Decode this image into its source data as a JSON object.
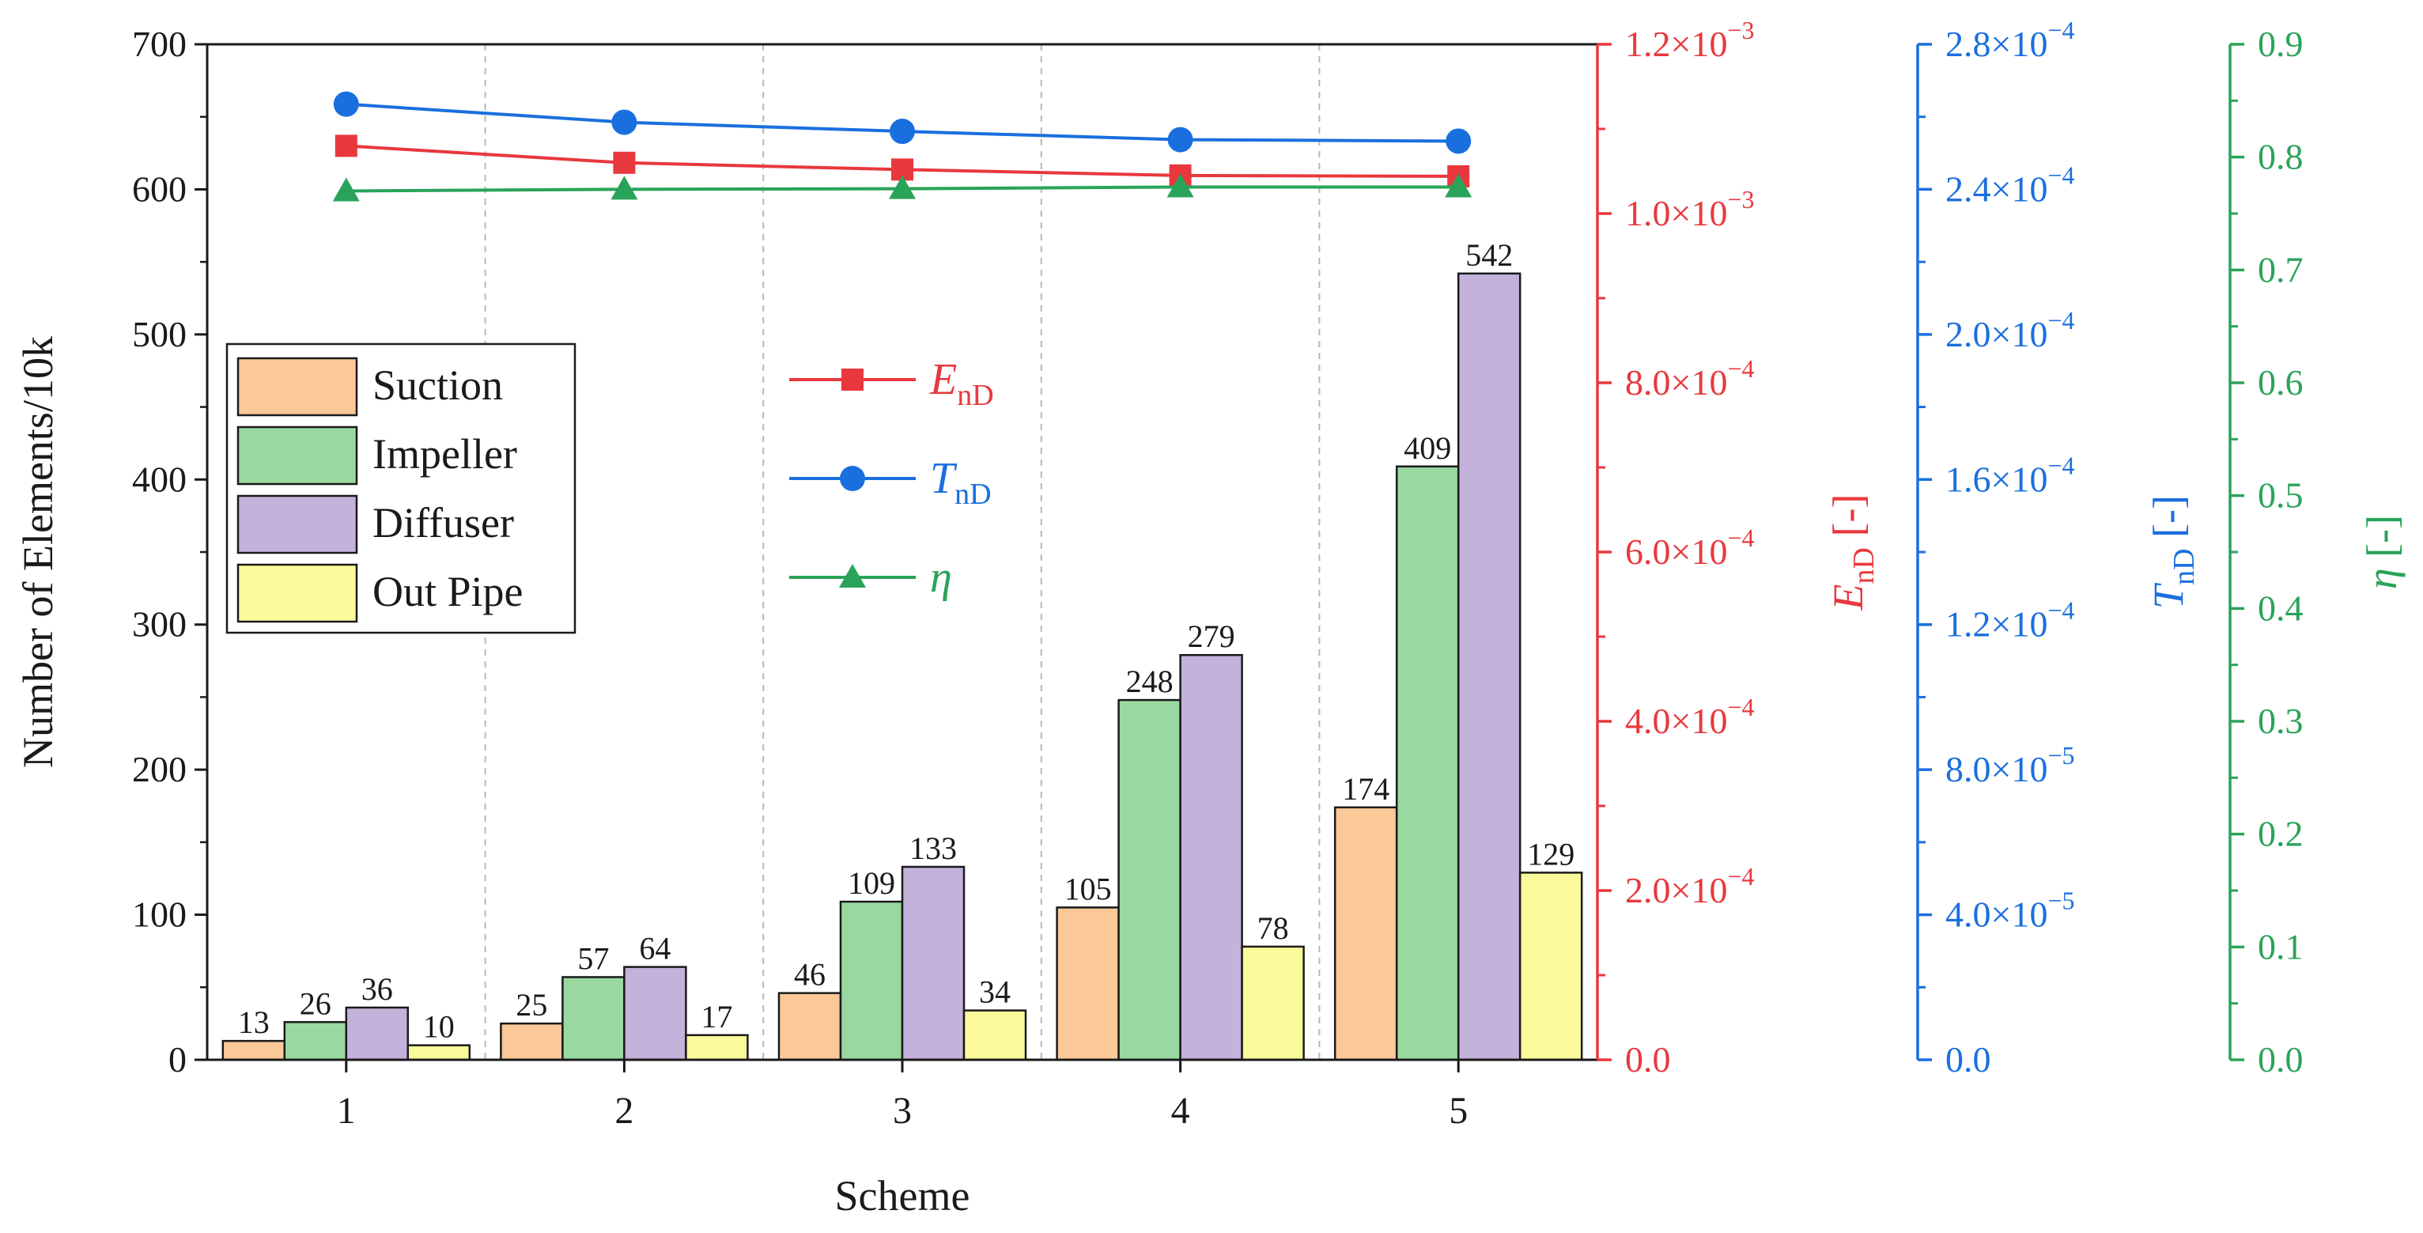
{
  "chart_data": {
    "type": "bar",
    "xlabel": "Scheme",
    "ylabel": "Number of Elements/10k",
    "categories": [
      "1",
      "2",
      "3",
      "4",
      "5"
    ],
    "ylim": [
      0,
      700
    ],
    "yticks": [
      "0",
      "100",
      "200",
      "300",
      "400",
      "500",
      "600",
      "700"
    ],
    "grid": "vertical dashed lines between schemes",
    "legend_position": "left",
    "series": [
      {
        "name": "Suction",
        "color": "#fbc898",
        "values": [
          13,
          25,
          46,
          105,
          174
        ],
        "labels": [
          "13",
          "25",
          "46",
          "105",
          "174"
        ]
      },
      {
        "name": "Impeller",
        "color": "#99d9a1",
        "values": [
          26,
          57,
          109,
          248,
          409
        ],
        "labels": [
          "26",
          "57",
          "109",
          "248",
          "409"
        ]
      },
      {
        "name": "Diffuser",
        "color": "#c3b2da",
        "values": [
          36,
          64,
          133,
          279,
          542
        ],
        "labels": [
          "36",
          "64",
          "133",
          "279",
          "542"
        ]
      },
      {
        "name": "Out Pipe",
        "color": "#fbfa9a",
        "values": [
          10,
          17,
          34,
          78,
          129
        ],
        "labels": [
          "10",
          "17",
          "34",
          "78",
          "129"
        ]
      }
    ],
    "line_series": [
      {
        "legend_symbol": "E",
        "legend_subscript": "nD",
        "color": "#e8383d",
        "marker": "square",
        "values": [
          0.00108,
          0.00106,
          0.001052,
          0.001045,
          0.001044
        ],
        "axis": {
          "side": "right-1",
          "ylim": [
            0,
            0.0012
          ],
          "tick_values": [
            0,
            0.0002,
            0.0004,
            0.0006,
            0.0008,
            0.001,
            0.0012
          ],
          "tick_labels": [
            {
              "mantissa": "0.0",
              "exponent": ""
            },
            {
              "mantissa": "2.0×10",
              "exponent": "−4"
            },
            {
              "mantissa": "4.0×10",
              "exponent": "−4"
            },
            {
              "mantissa": "6.0×10",
              "exponent": "−4"
            },
            {
              "mantissa": "8.0×10",
              "exponent": "−4"
            },
            {
              "mantissa": "1.0×10",
              "exponent": "−3"
            },
            {
              "mantissa": "1.2×10",
              "exponent": "−3"
            }
          ],
          "label_symbol": "E",
          "label_subscript": "nD",
          "label_unit": " [-]"
        }
      },
      {
        "legend_symbol": "T",
        "legend_subscript": "nD",
        "color": "#1a6fdf",
        "marker": "circle",
        "values": [
          0.0002635,
          0.0002585,
          0.000256,
          0.0002537,
          0.0002533
        ],
        "axis": {
          "side": "right-2",
          "ylim": [
            0,
            0.00028
          ],
          "tick_values": [
            0,
            4e-05,
            8e-05,
            0.00012,
            0.00016,
            0.0002,
            0.00024,
            0.00028
          ],
          "tick_labels": [
            {
              "mantissa": "0.0",
              "exponent": ""
            },
            {
              "mantissa": "4.0×10",
              "exponent": "−5"
            },
            {
              "mantissa": "8.0×10",
              "exponent": "−5"
            },
            {
              "mantissa": "1.2×10",
              "exponent": "−4"
            },
            {
              "mantissa": "1.6×10",
              "exponent": "−4"
            },
            {
              "mantissa": "2.0×10",
              "exponent": "−4"
            },
            {
              "mantissa": "2.4×10",
              "exponent": "−4"
            },
            {
              "mantissa": "2.8×10",
              "exponent": "−4"
            }
          ],
          "label_symbol": "T",
          "label_subscript": "nD",
          "label_unit": " [-]"
        }
      },
      {
        "legend_symbol": "η",
        "legend_subscript": "",
        "color": "#2aa35a",
        "marker": "triangle",
        "values": [
          0.77,
          0.7715,
          0.772,
          0.7735,
          0.7735
        ],
        "axis": {
          "side": "right-3",
          "ylim": [
            0,
            0.9
          ],
          "tick_values": [
            0,
            0.1,
            0.2,
            0.3,
            0.4,
            0.5,
            0.6,
            0.7,
            0.8,
            0.9
          ],
          "tick_labels": [
            {
              "mantissa": "0.0",
              "exponent": ""
            },
            {
              "mantissa": "0.1",
              "exponent": ""
            },
            {
              "mantissa": "0.2",
              "exponent": ""
            },
            {
              "mantissa": "0.3",
              "exponent": ""
            },
            {
              "mantissa": "0.4",
              "exponent": ""
            },
            {
              "mantissa": "0.5",
              "exponent": ""
            },
            {
              "mantissa": "0.6",
              "exponent": ""
            },
            {
              "mantissa": "0.7",
              "exponent": ""
            },
            {
              "mantissa": "0.8",
              "exponent": ""
            },
            {
              "mantissa": "0.9",
              "exponent": ""
            }
          ],
          "label_symbol": "η",
          "label_subscript": "",
          "label_unit": " [-]"
        }
      }
    ]
  }
}
